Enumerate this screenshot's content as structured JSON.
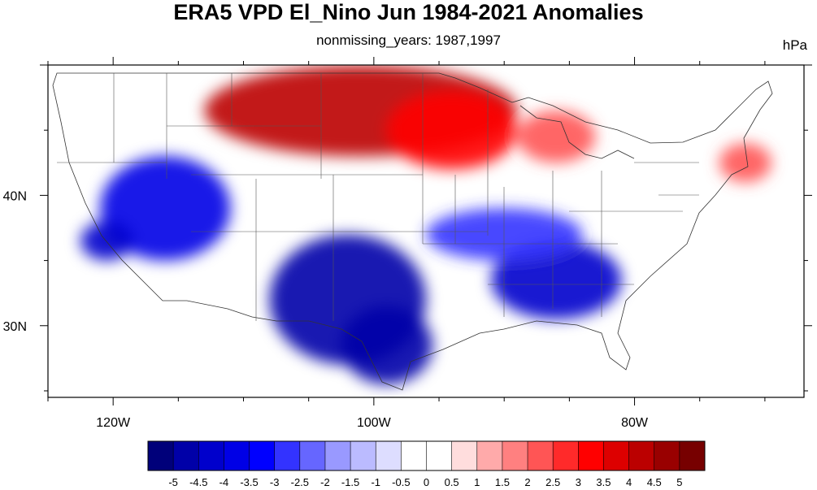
{
  "title": "ERA5 VPD El_Nino Jun 1984-2021 Anomalies",
  "subtitle": "nonmissing_years: 1987,1997",
  "units": "hPa",
  "map": {
    "lon_range": [
      -125,
      -67
    ],
    "lat_range": [
      24.5,
      50
    ],
    "lon_ticks": [
      {
        "value": -120,
        "label": "120W"
      },
      {
        "value": -100,
        "label": "100W"
      },
      {
        "value": -80,
        "label": "80W"
      }
    ],
    "lat_ticks": [
      {
        "value": 40,
        "label": "40N"
      },
      {
        "value": 30,
        "label": "30N"
      }
    ],
    "anomaly_regions": [
      {
        "name": "northern-plains-positive",
        "level": 4,
        "center": [
          -101,
          46.5
        ],
        "extent": [
          12,
          3.5
        ]
      },
      {
        "name": "dakotas-minnesota-positive",
        "level": 3,
        "center": [
          -94,
          45
        ],
        "extent": [
          5,
          3
        ]
      },
      {
        "name": "great-lakes-positive",
        "level": 2,
        "center": [
          -86,
          44.5
        ],
        "extent": [
          3,
          2
        ]
      },
      {
        "name": "new-england-positive",
        "level": 2,
        "center": [
          -71.5,
          42.5
        ],
        "extent": [
          2,
          1.5
        ]
      },
      {
        "name": "great-basin-negative",
        "level": -4,
        "center": [
          -116,
          39
        ],
        "extent": [
          5,
          4
        ]
      },
      {
        "name": "california-negative",
        "level": -4.5,
        "center": [
          -120.5,
          36.5
        ],
        "extent": [
          2,
          1.5
        ]
      },
      {
        "name": "southern-plains-negative",
        "level": -5,
        "center": [
          -102,
          32
        ],
        "extent": [
          6,
          5
        ]
      },
      {
        "name": "texas-negative",
        "level": -5,
        "center": [
          -99,
          28.5
        ],
        "extent": [
          3.5,
          3
        ]
      },
      {
        "name": "southeast-negative",
        "level": -4.5,
        "center": [
          -86,
          33.5
        ],
        "extent": [
          5,
          3
        ]
      },
      {
        "name": "ohio-valley-negative",
        "level": -3,
        "center": [
          -90,
          37
        ],
        "extent": [
          6,
          2
        ]
      }
    ]
  },
  "colorbar": {
    "levels": [
      "-5",
      "-4.5",
      "-4",
      "-3.5",
      "-3",
      "-2.5",
      "-2",
      "-1.5",
      "-1",
      "-0.5",
      "0",
      "0.5",
      "1",
      "1.5",
      "2",
      "2.5",
      "3",
      "3.5",
      "4",
      "4.5",
      "5"
    ],
    "colors": [
      "#00007a",
      "#0000a8",
      "#0000cc",
      "#0000e6",
      "#0000ff",
      "#3333ff",
      "#6666ff",
      "#9999ff",
      "#bbbbff",
      "#ddddff",
      "#ffffff",
      "#ffffff",
      "#ffdddd",
      "#ffaaaa",
      "#ff8080",
      "#ff5555",
      "#ff2a2a",
      "#ff0000",
      "#dd0000",
      "#bb0000",
      "#990000",
      "#770000"
    ]
  }
}
